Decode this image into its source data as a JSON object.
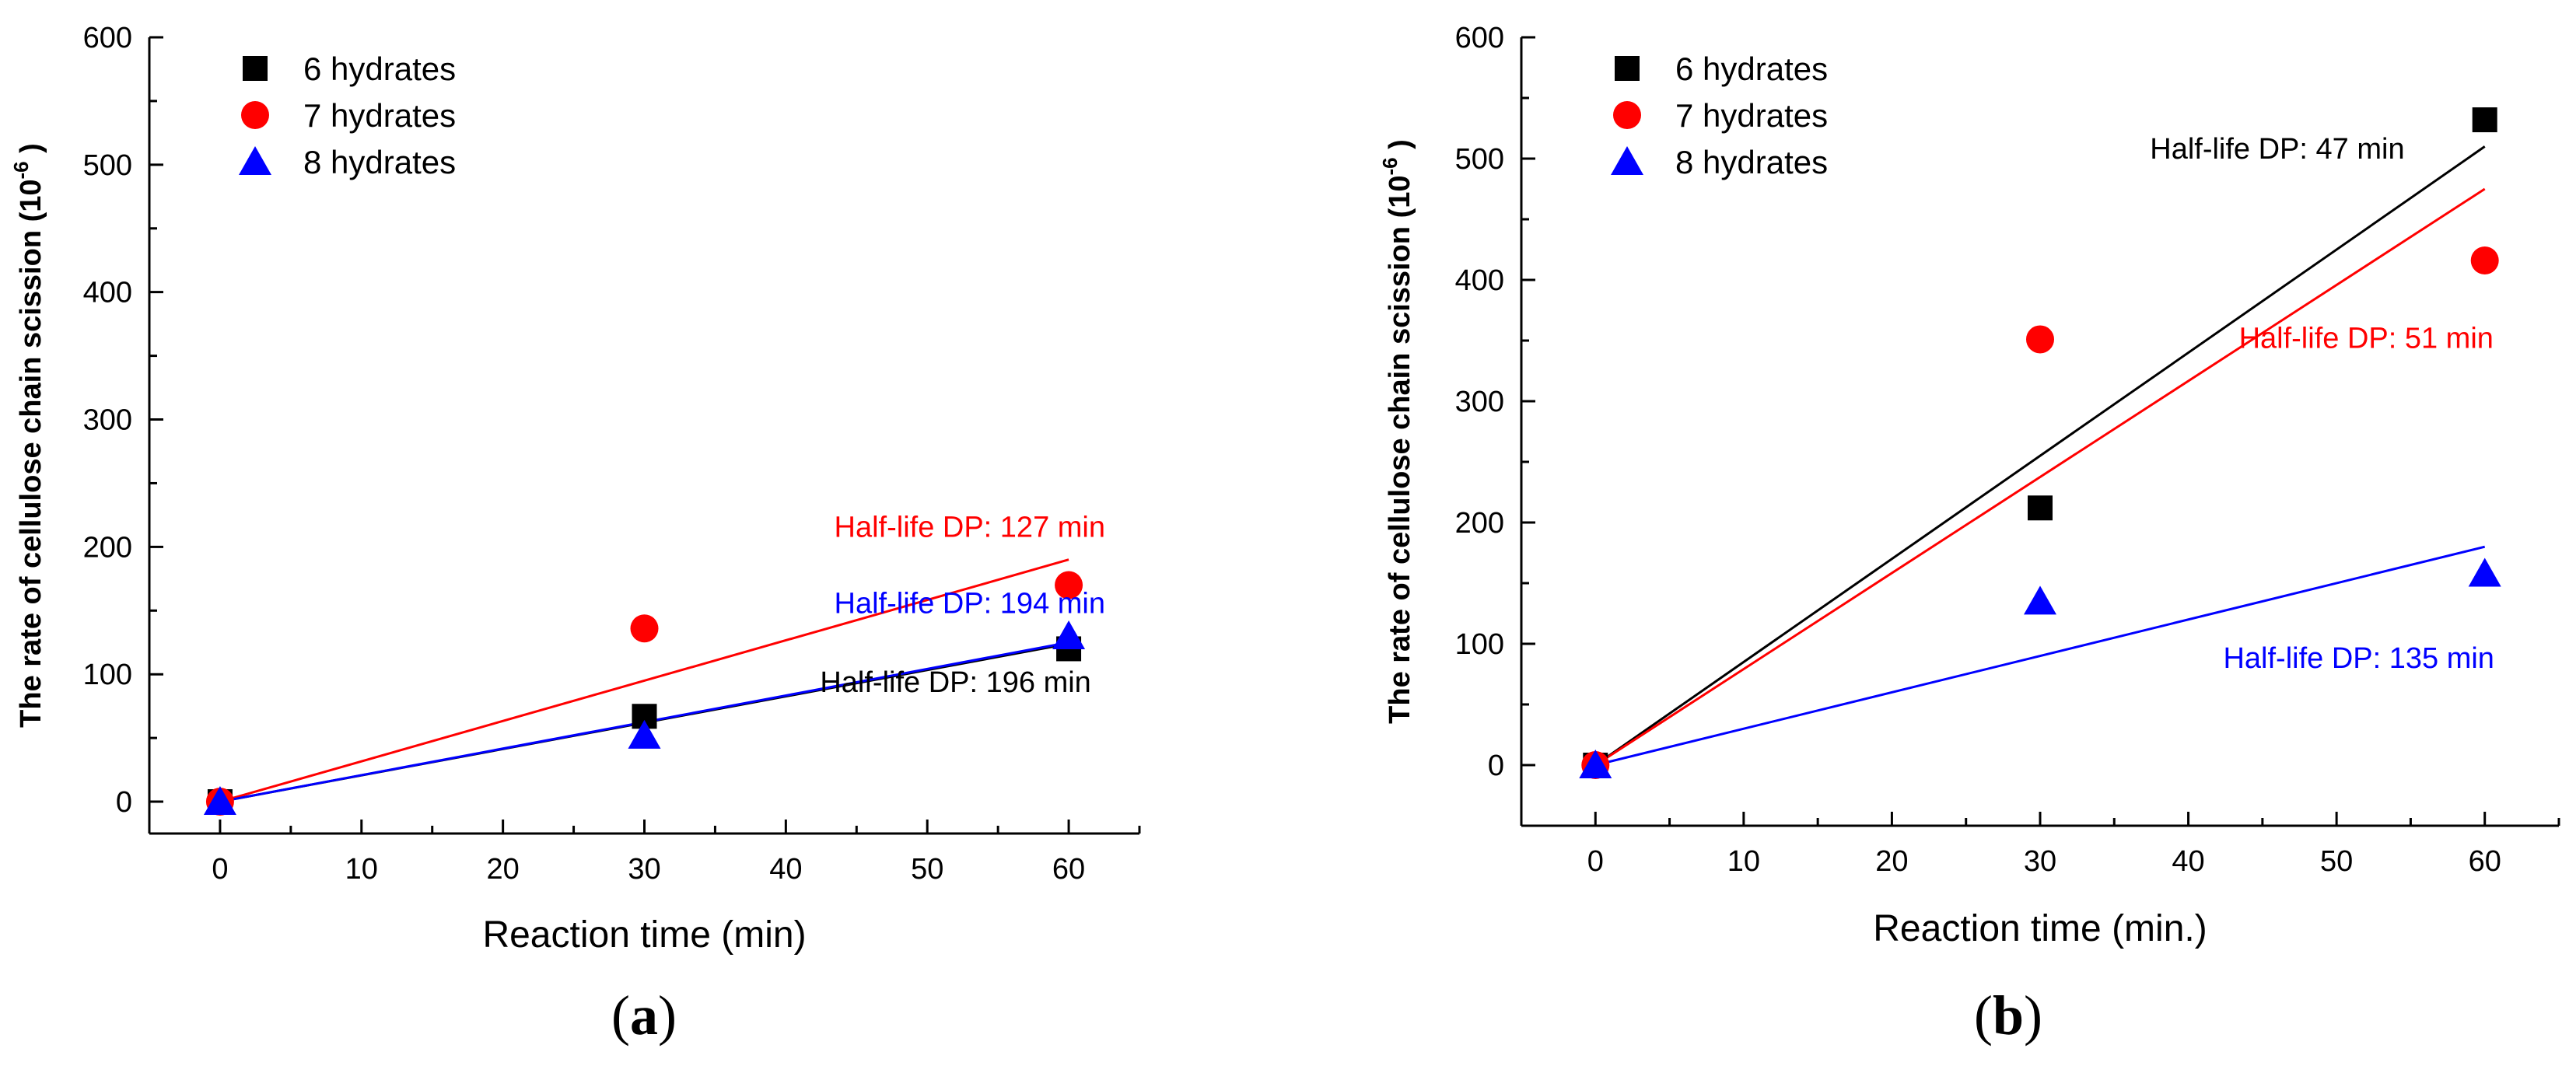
{
  "colors": {
    "6_hydrates": "#000000",
    "7_hydrates": "#ff0000",
    "8_hydrates": "#0000ff"
  },
  "chart_data": [
    {
      "type": "scatter",
      "panel_label": "a",
      "xlabel": "Reaction time (min)",
      "ylabel": "The rate of cellulose chain scission (10",
      "ylabel_sup": "-6",
      "ylabel_end": " )",
      "xlim": [
        -5,
        65
      ],
      "ylim": [
        -25,
        600
      ],
      "xticks": [
        0,
        10,
        20,
        30,
        40,
        50,
        60
      ],
      "yticks": [
        0,
        100,
        200,
        300,
        400,
        500,
        600
      ],
      "legend_position": "top-left",
      "series": [
        {
          "name": "6 hydrates",
          "marker": "square",
          "color_key": "6_hydrates",
          "x": [
            0,
            30,
            60
          ],
          "y": [
            0,
            67,
            120
          ],
          "fit_end_y": 124
        },
        {
          "name": "7 hydrates",
          "marker": "circle",
          "color_key": "7_hydrates",
          "x": [
            0,
            30,
            60
          ],
          "y": [
            0,
            136,
            170
          ],
          "fit_end_y": 190
        },
        {
          "name": "8 hydrates",
          "marker": "triangle",
          "color_key": "8_hydrates",
          "x": [
            0,
            30,
            60
          ],
          "y": [
            0,
            52,
            130
          ],
          "fit_end_y": 125
        }
      ],
      "annotations": [
        {
          "text": "Half-life DP: 127 min",
          "color_key": "7_hydrates",
          "x": 53,
          "y": 208
        },
        {
          "text": "Half-life DP: 194 min",
          "color_key": "8_hydrates",
          "x": 53,
          "y": 148
        },
        {
          "text": "Half-life DP: 196 min",
          "color_key": "6_hydrates",
          "x": 52,
          "y": 86
        }
      ]
    },
    {
      "type": "scatter",
      "panel_label": "b",
      "xlabel": "Reaction time (min.)",
      "ylabel": "The rate of cellulose chain scission (10",
      "ylabel_sup": "-6",
      "ylabel_end": " )",
      "xlim": [
        -5,
        65
      ],
      "ylim": [
        -50,
        600
      ],
      "xticks": [
        0,
        10,
        20,
        30,
        40,
        50,
        60
      ],
      "yticks": [
        0,
        100,
        200,
        300,
        400,
        500,
        600
      ],
      "legend_position": "top-left",
      "series": [
        {
          "name": "6 hydrates",
          "marker": "square",
          "color_key": "6_hydrates",
          "x": [
            0,
            30,
            60
          ],
          "y": [
            0,
            212,
            532
          ],
          "fit_end_y": 510
        },
        {
          "name": "7 hydrates",
          "marker": "circle",
          "color_key": "7_hydrates",
          "x": [
            0,
            30,
            60
          ],
          "y": [
            0,
            351,
            416
          ],
          "fit_end_y": 475
        },
        {
          "name": "8 hydrates",
          "marker": "triangle",
          "color_key": "8_hydrates",
          "x": [
            0,
            30,
            60
          ],
          "y": [
            0,
            135,
            158
          ],
          "fit_end_y": 180
        }
      ],
      "annotations": [
        {
          "text": "Half-life DP: 47 min",
          "color_key": "6_hydrates",
          "x": 46,
          "y": 500
        },
        {
          "text": "Half-life DP: 51 min",
          "color_key": "7_hydrates",
          "x": 52,
          "y": 344
        },
        {
          "text": "Half-life DP: 135 min",
          "color_key": "8_hydrates",
          "x": 51.5,
          "y": 80
        }
      ]
    }
  ]
}
